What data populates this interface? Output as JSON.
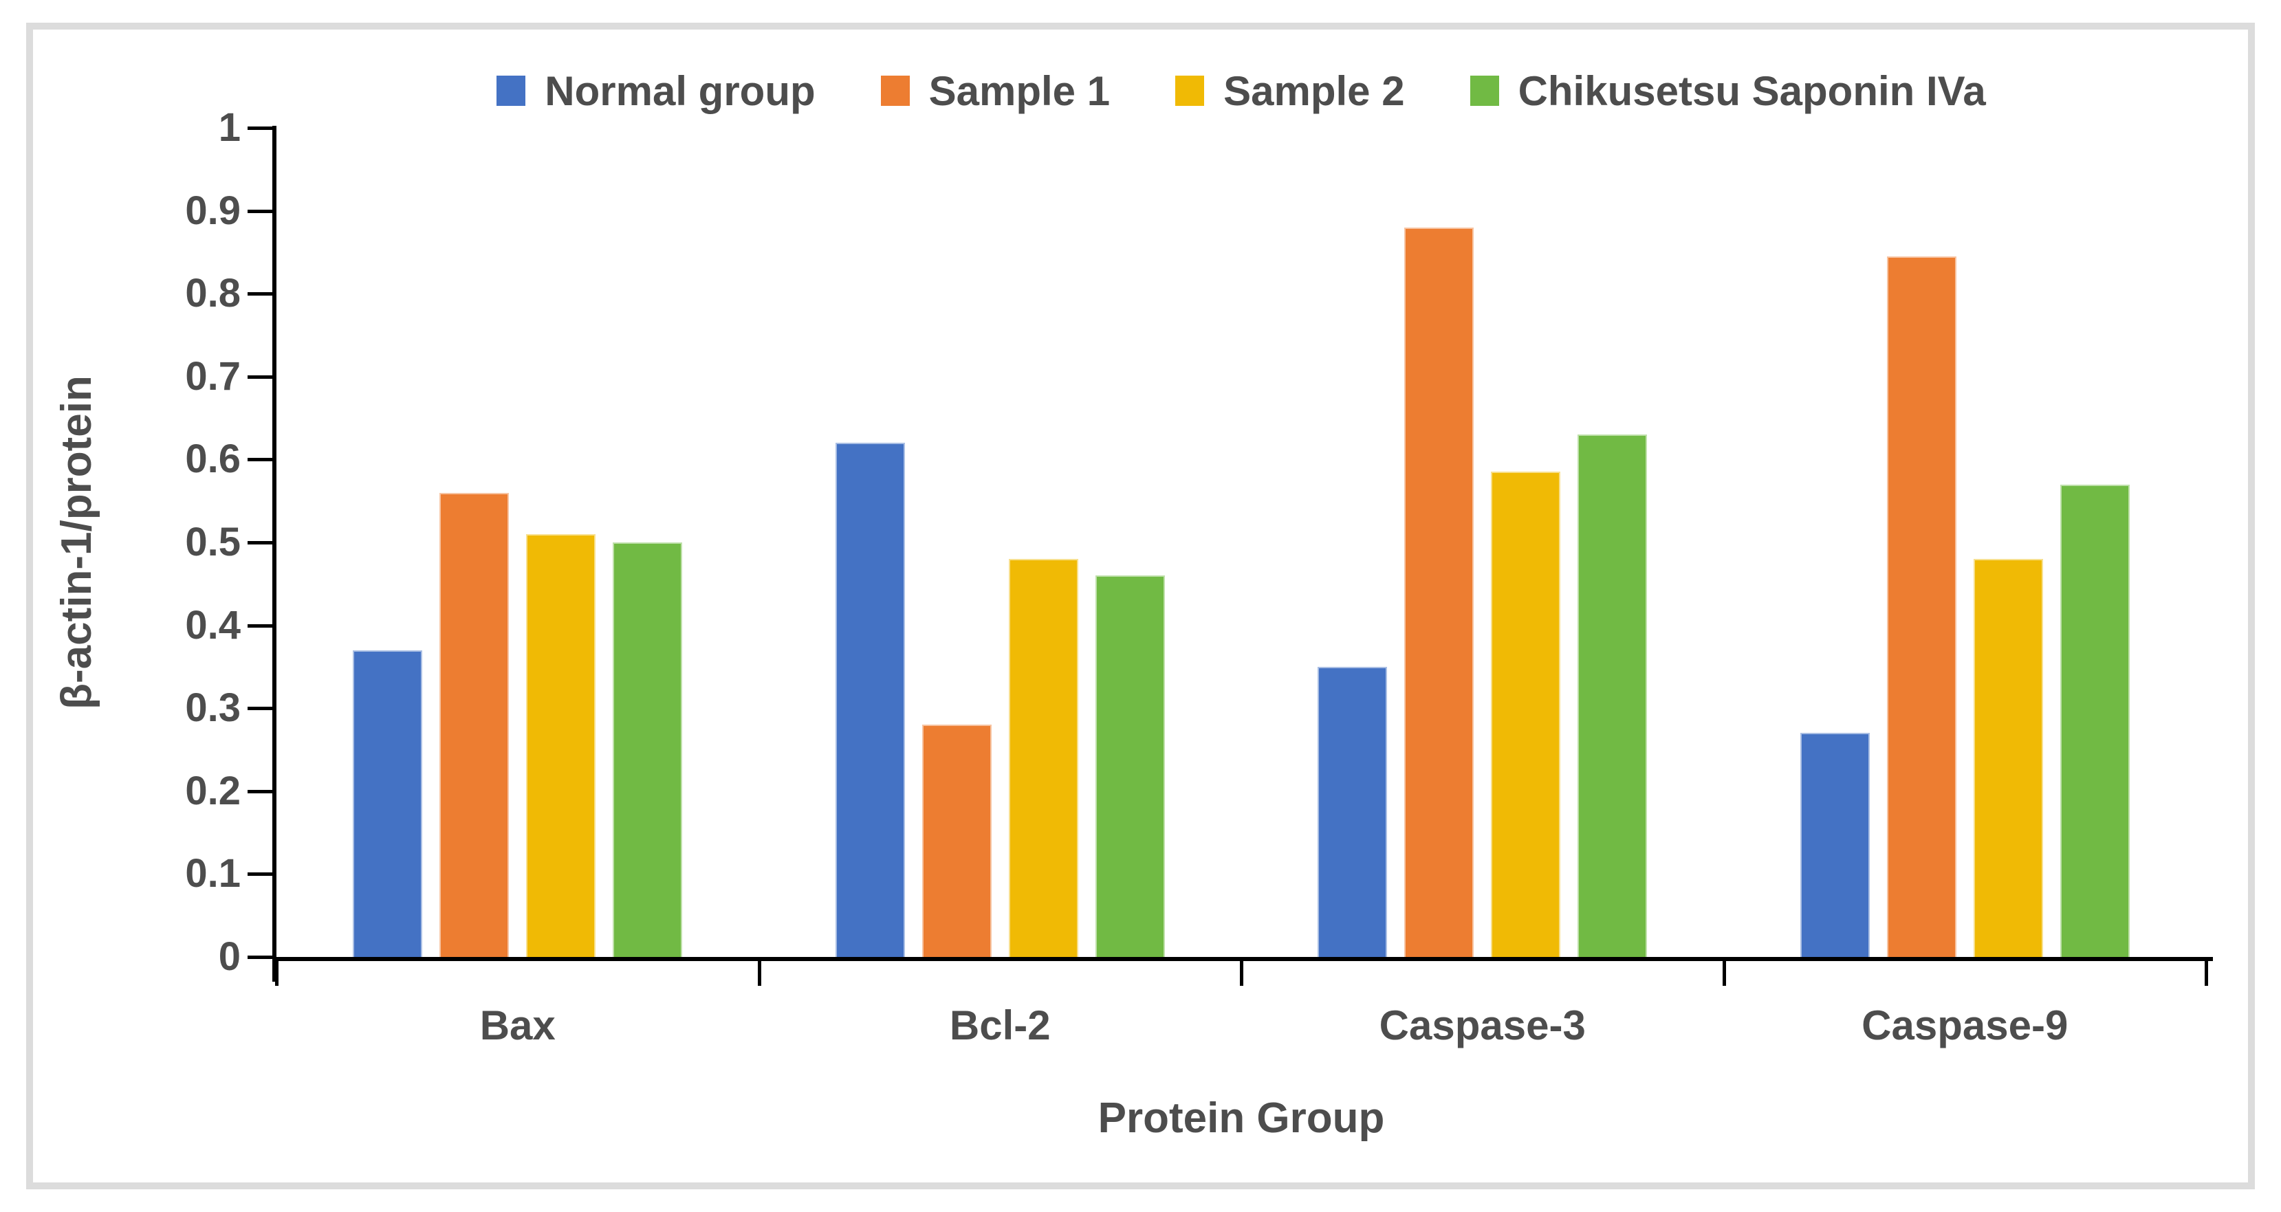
{
  "chart_data": {
    "type": "bar",
    "title": "",
    "xlabel": "Protein Group",
    "ylabel": "β-actin-1/protein",
    "categories": [
      "Bax",
      "Bcl-2",
      "Caspase-3",
      "Caspase-9"
    ],
    "series": [
      {
        "name": "Normal group",
        "color": "#4472C4",
        "values": [
          0.37,
          0.62,
          0.35,
          0.27
        ]
      },
      {
        "name": "Sample 1",
        "color": "#ED7D31",
        "values": [
          0.56,
          0.28,
          0.88,
          0.845
        ]
      },
      {
        "name": "Sample 2",
        "color": "#F0BA05",
        "values": [
          0.51,
          0.48,
          0.585,
          0.48
        ]
      },
      {
        "name": "Chikusetsu Saponin IVa",
        "color": "#71BA44",
        "values": [
          0.5,
          0.46,
          0.63,
          0.57
        ]
      }
    ],
    "ylim": [
      0,
      1
    ],
    "ytick_labels": [
      "1",
      "0.9",
      "0.8",
      "0.7",
      "0.6",
      "0.5",
      "0.4",
      "0.3",
      "0.2",
      "0.1",
      "0"
    ],
    "grid": false,
    "legend_position": "top"
  },
  "style": {
    "text_color": "#4D4D4D",
    "axis_color": "#000000",
    "frame_border_color": "#DCDCDC"
  }
}
